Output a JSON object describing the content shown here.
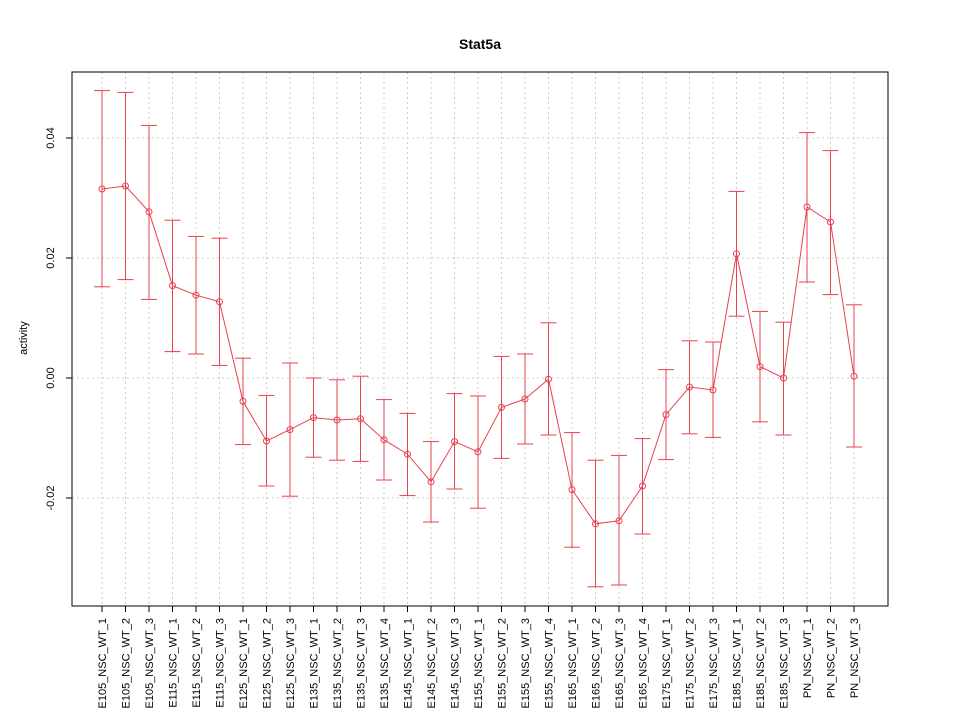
{
  "chart_data": {
    "type": "line",
    "title": "Stat5a",
    "xlabel": "",
    "ylabel": "activity",
    "ylim": [
      -0.038,
      0.051
    ],
    "yticks": [
      -0.02,
      0.0,
      0.02,
      0.04
    ],
    "ytick_labels": [
      "-0.02",
      "0.00",
      "0.02",
      "0.04"
    ],
    "grid": true,
    "series_color": "#e8414f",
    "grid_color": "#cccccc",
    "categories": [
      "E105_NSC_WT_1",
      "E105_NSC_WT_2",
      "E105_NSC_WT_3",
      "E115_NSC_WT_1",
      "E115_NSC_WT_2",
      "E115_NSC_WT_3",
      "E125_NSC_WT_1",
      "E125_NSC_WT_2",
      "E125_NSC_WT_3",
      "E135_NSC_WT_1",
      "E135_NSC_WT_2",
      "E135_NSC_WT_3",
      "E135_NSC_WT_4",
      "E145_NSC_WT_1",
      "E145_NSC_WT_2",
      "E145_NSC_WT_3",
      "E155_NSC_WT_1",
      "E155_NSC_WT_2",
      "E155_NSC_WT_3",
      "E155_NSC_WT_4",
      "E165_NSC_WT_1",
      "E165_NSC_WT_2",
      "E165_NSC_WT_3",
      "E165_NSC_WT_4",
      "E175_NSC_WT_1",
      "E175_NSC_WT_2",
      "E175_NSC_WT_3",
      "E185_NSC_WT_1",
      "E185_NSC_WT_2",
      "E185_NSC_WT_3",
      "PN_NSC_WT_1",
      "PN_NSC_WT_2",
      "PN_NSC_WT_3"
    ],
    "values": [
      0.0315,
      0.032,
      0.0277,
      0.0154,
      0.0138,
      0.0127,
      -0.0039,
      -0.0105,
      -0.0086,
      -0.0066,
      -0.007,
      -0.0068,
      -0.0103,
      -0.0127,
      -0.0173,
      -0.0106,
      -0.0123,
      -0.0049,
      -0.0035,
      -0.0002,
      -0.0186,
      -0.0243,
      -0.0238,
      -0.018,
      -0.0061,
      -0.0015,
      -0.002,
      0.0207,
      0.0019,
      0.0,
      0.0285,
      0.026,
      0.0003
    ],
    "upper": [
      0.0479,
      0.0476,
      0.0421,
      0.0263,
      0.0236,
      0.0233,
      0.0033,
      -0.0029,
      0.0025,
      0.0,
      -0.0003,
      0.0003,
      -0.0036,
      -0.0059,
      -0.0106,
      -0.0026,
      -0.003,
      0.0036,
      0.004,
      0.0092,
      -0.0091,
      -0.0137,
      -0.0129,
      -0.0101,
      0.0014,
      0.0062,
      0.006,
      0.0311,
      0.0111,
      0.0093,
      0.0409,
      0.0379,
      0.0122
    ],
    "lower": [
      0.0152,
      0.0164,
      0.0131,
      0.0044,
      0.004,
      0.0021,
      -0.0111,
      -0.018,
      -0.0197,
      -0.0132,
      -0.0137,
      -0.0139,
      -0.017,
      -0.0196,
      -0.024,
      -0.0185,
      -0.0217,
      -0.0134,
      -0.011,
      -0.0095,
      -0.0282,
      -0.0348,
      -0.0345,
      -0.026,
      -0.0136,
      -0.0093,
      -0.0099,
      0.0103,
      -0.0073,
      -0.0095,
      0.016,
      0.0139,
      -0.0115
    ]
  }
}
